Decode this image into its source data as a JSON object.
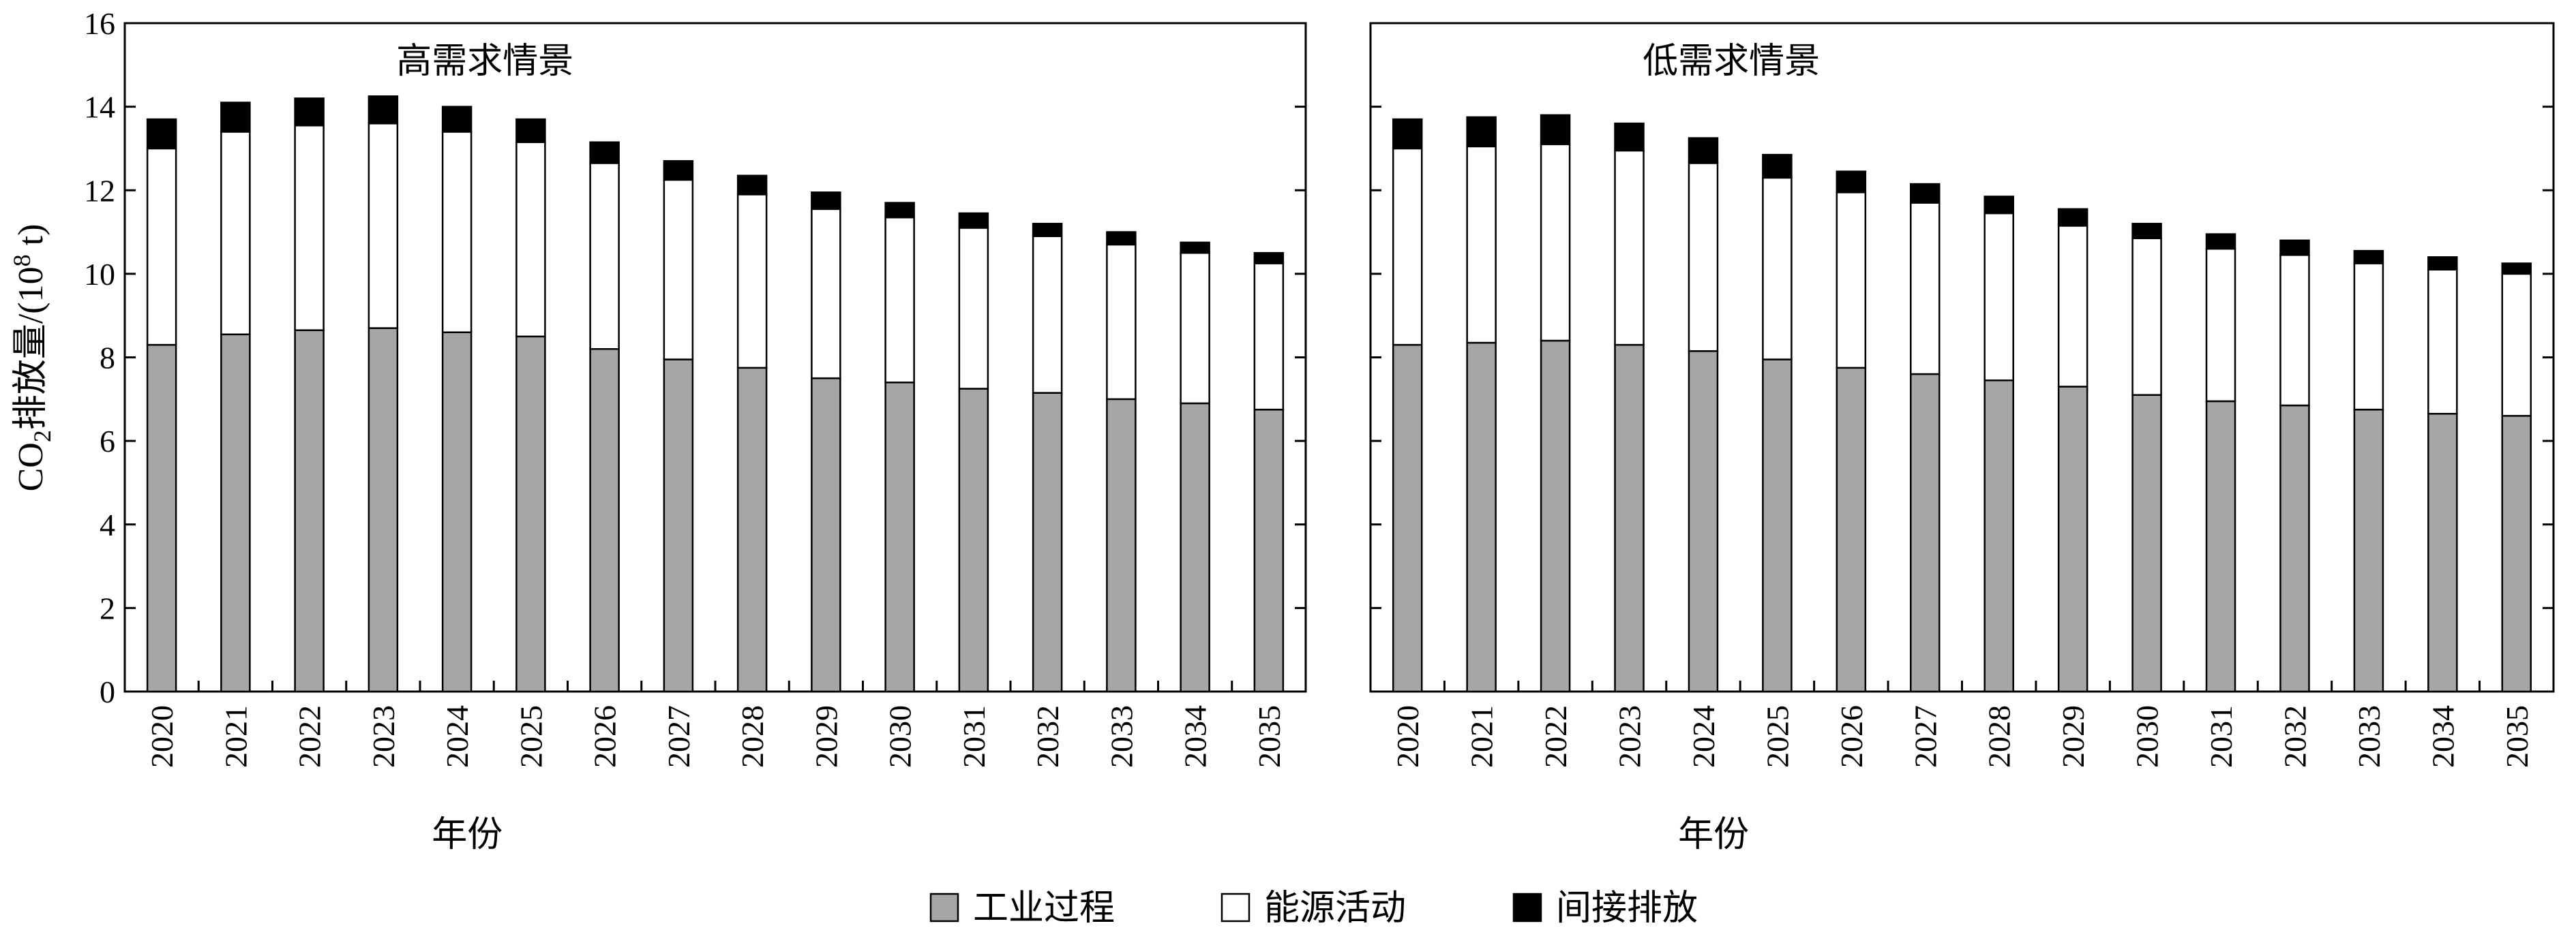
{
  "chart_data": {
    "type": "bar",
    "stacked": true,
    "ylabel_main": "CO",
    "ylabel_sub": "2",
    "ylabel_rest": "排放量/(10",
    "ylabel_sup": "8",
    "ylabel_end": " t)",
    "xlabel": "年份",
    "ylim": [
      0,
      16
    ],
    "yticks": [
      "0",
      "2",
      "4",
      "6",
      "8",
      "10",
      "12",
      "14",
      "16"
    ],
    "categories": [
      "2020",
      "2021",
      "2022",
      "2023",
      "2024",
      "2025",
      "2026",
      "2027",
      "2028",
      "2029",
      "2030",
      "2031",
      "2032",
      "2033",
      "2034",
      "2035"
    ],
    "legend": {
      "placement": "bottom",
      "items": [
        {
          "name": "工业过程",
          "color": "#a6a6a6"
        },
        {
          "name": "能源活动",
          "color": "#ffffff"
        },
        {
          "name": "间接排放",
          "color": "#000000"
        }
      ]
    },
    "panels": [
      {
        "title": "高需求情景",
        "series": [
          {
            "name": "工业过程",
            "values": [
              8.3,
              8.55,
              8.65,
              8.7,
              8.6,
              8.5,
              8.2,
              7.95,
              7.75,
              7.5,
              7.4,
              7.25,
              7.15,
              7.0,
              6.9,
              6.75
            ]
          },
          {
            "name": "能源活动",
            "values": [
              4.7,
              4.85,
              4.9,
              4.9,
              4.8,
              4.65,
              4.45,
              4.3,
              4.15,
              4.05,
              3.95,
              3.85,
              3.75,
              3.7,
              3.6,
              3.5
            ]
          },
          {
            "name": "间接排放",
            "values": [
              0.7,
              0.7,
              0.65,
              0.65,
              0.6,
              0.55,
              0.5,
              0.45,
              0.45,
              0.4,
              0.35,
              0.35,
              0.3,
              0.3,
              0.25,
              0.25
            ]
          }
        ]
      },
      {
        "title": "低需求情景",
        "series": [
          {
            "name": "工业过程",
            "values": [
              8.3,
              8.35,
              8.4,
              8.3,
              8.15,
              7.95,
              7.75,
              7.6,
              7.45,
              7.3,
              7.1,
              6.95,
              6.85,
              6.75,
              6.65,
              6.6
            ]
          },
          {
            "name": "能源活动",
            "values": [
              4.7,
              4.7,
              4.7,
              4.65,
              4.5,
              4.35,
              4.2,
              4.1,
              4.0,
              3.85,
              3.75,
              3.65,
              3.6,
              3.5,
              3.45,
              3.4
            ]
          },
          {
            "name": "间接排放",
            "values": [
              0.7,
              0.7,
              0.7,
              0.65,
              0.6,
              0.55,
              0.5,
              0.45,
              0.4,
              0.4,
              0.35,
              0.35,
              0.35,
              0.3,
              0.3,
              0.25
            ]
          }
        ]
      }
    ]
  }
}
